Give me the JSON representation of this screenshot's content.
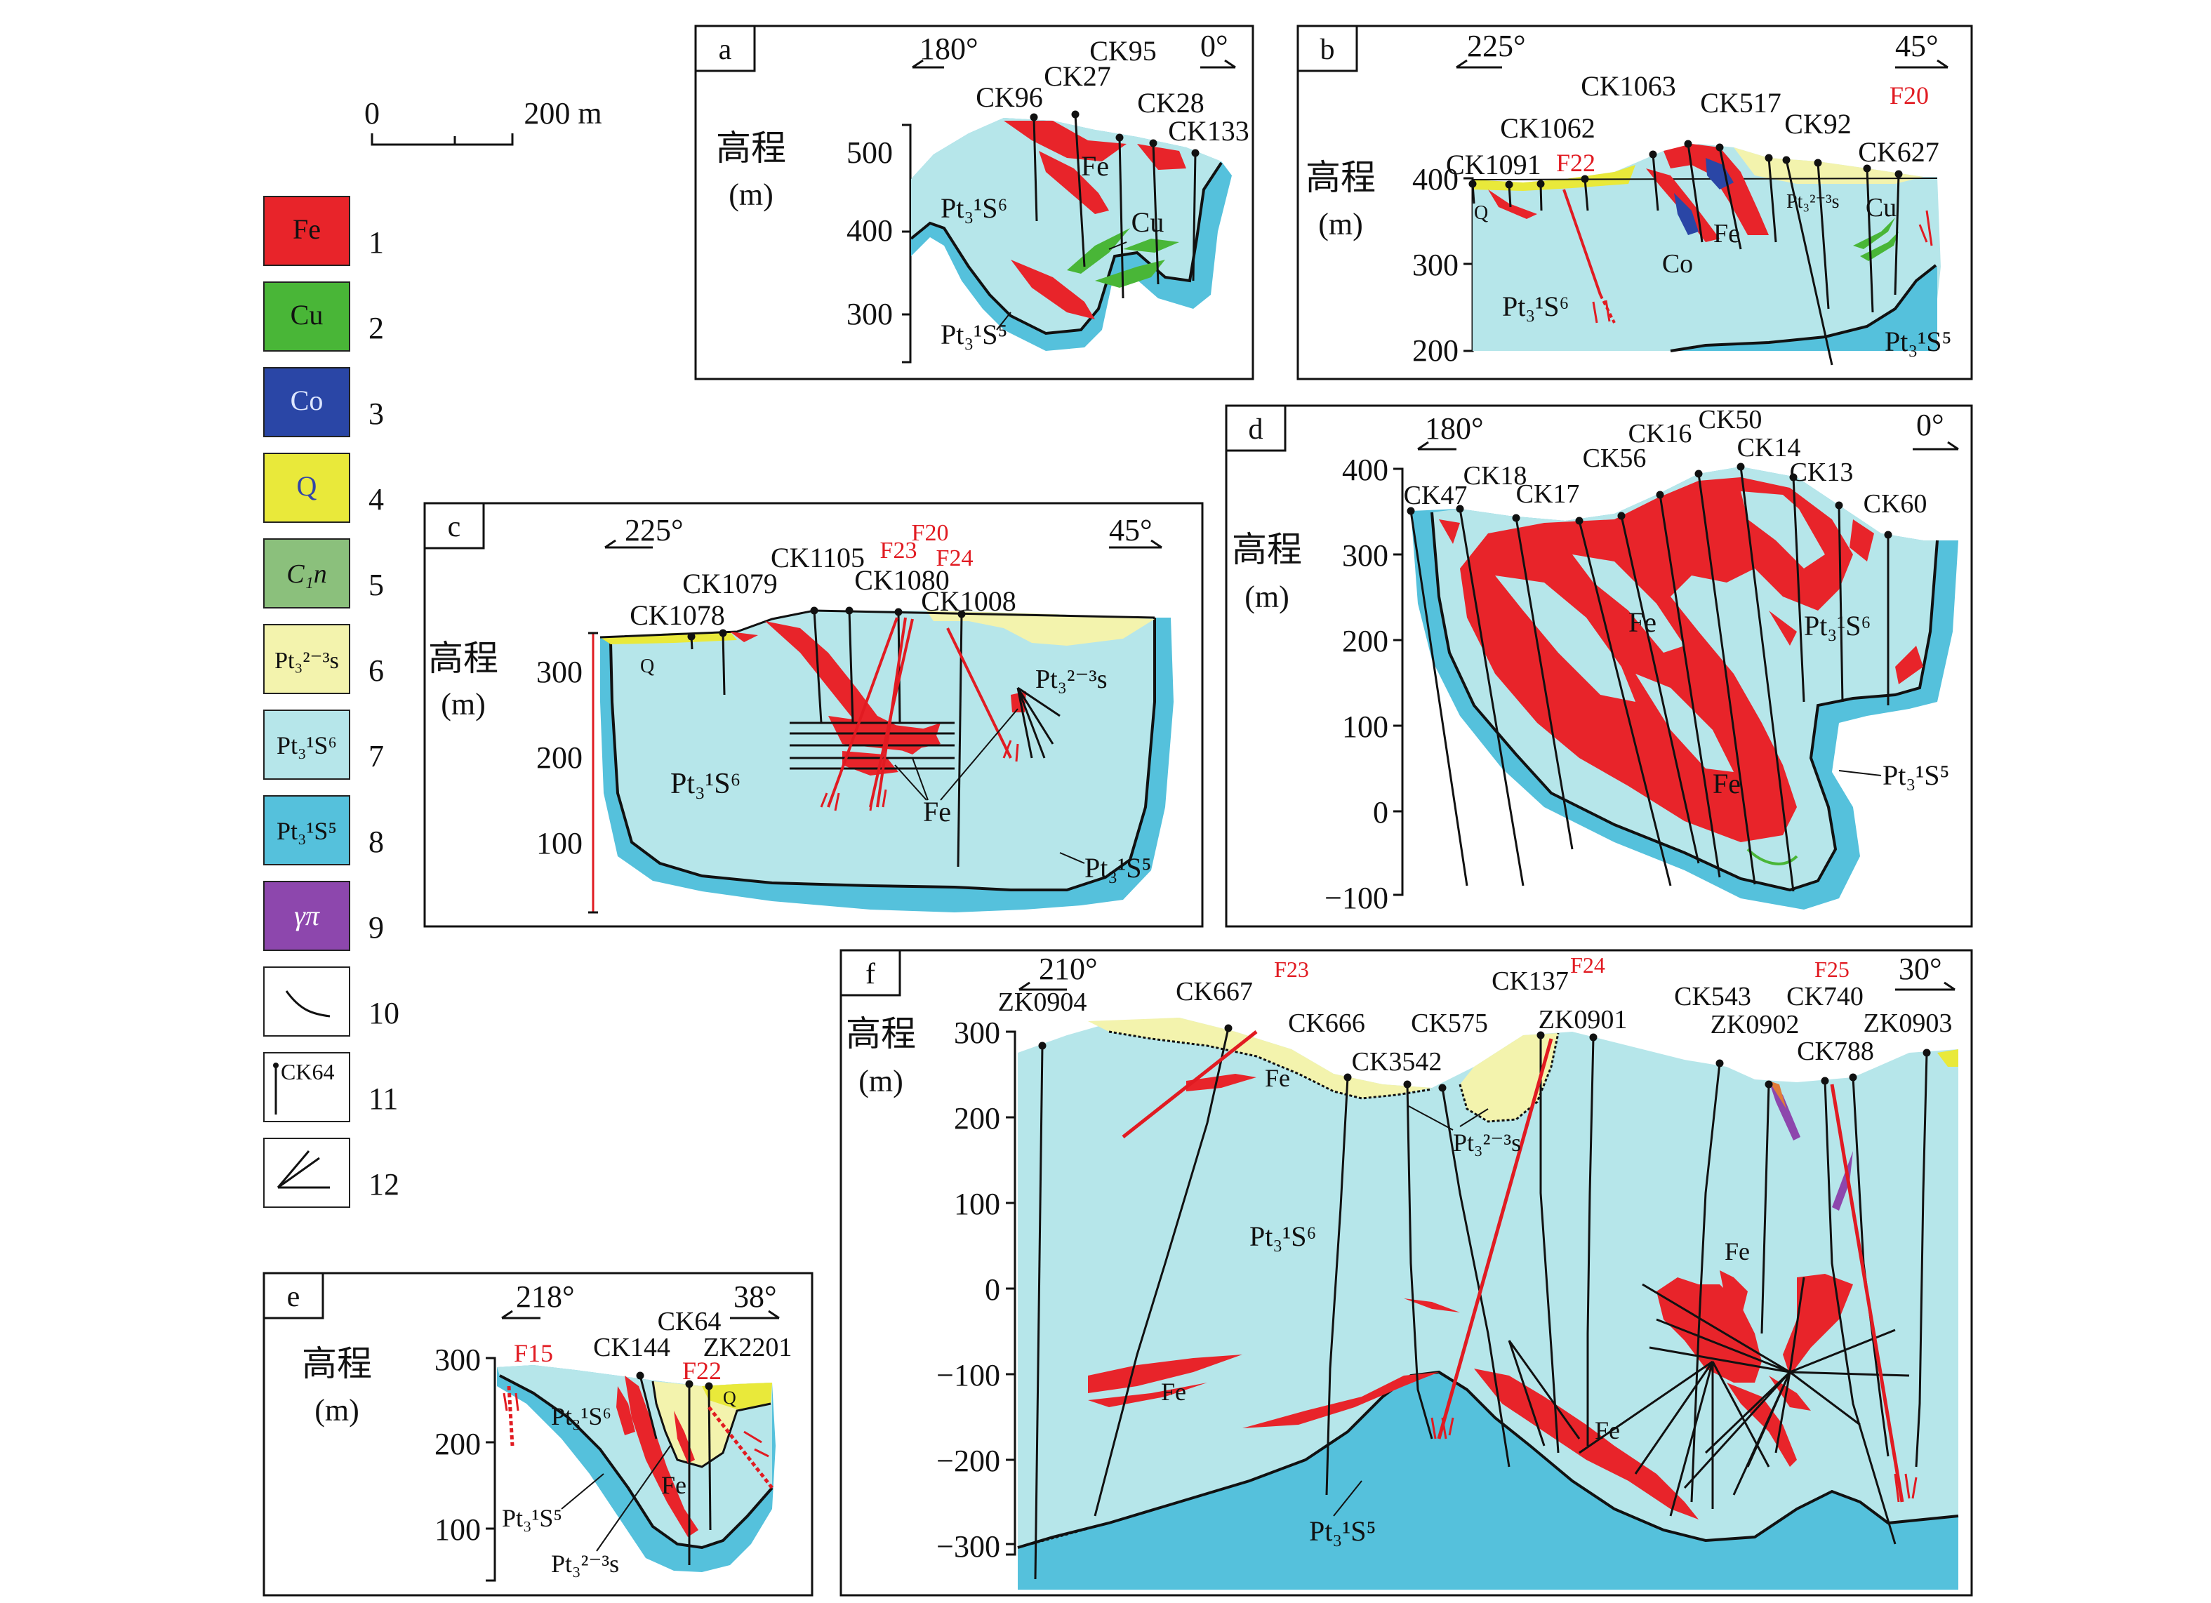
{
  "colors": {
    "fe": "#e8242a",
    "cu": "#49b637",
    "co": "#2a46a6",
    "q": "#f0ef8a",
    "c1n": "#8bc07c",
    "pt_23s": "#f3f3ad",
    "pt_s6": "#b6e6ea",
    "pt_s5": "#55c1dc",
    "gamma_pi": "#8d47ad",
    "fault": "#e11b22",
    "outline": "#111111"
  },
  "scale_bar": {
    "start": "0",
    "end": "200 m"
  },
  "legend": [
    {
      "swatch": "Fe",
      "num": "1",
      "color_key": "fe"
    },
    {
      "swatch": "Cu",
      "num": "2",
      "color_key": "cu"
    },
    {
      "swatch": "Co",
      "num": "3",
      "color_key": "co"
    },
    {
      "swatch": "Q",
      "num": "4",
      "color_key": "q"
    },
    {
      "swatch": "C₁n",
      "num": "5",
      "color_key": "c1n"
    },
    {
      "swatch": "Pt₃²⁻³s",
      "num": "6",
      "color_key": "pt_23s"
    },
    {
      "swatch": "Pt₃¹S⁶",
      "num": "7",
      "color_key": "pt_s6"
    },
    {
      "swatch": "Pt₃¹S⁵",
      "num": "8",
      "color_key": "pt_s5"
    },
    {
      "swatch": "γπ",
      "num": "9",
      "color_key": "gamma_pi"
    },
    {
      "swatch": "",
      "num": "10",
      "icon": "contact-line-icon"
    },
    {
      "swatch": "CK64",
      "num": "11",
      "icon": "drill-hole-icon"
    },
    {
      "swatch": "",
      "num": "12",
      "icon": "fan-drill-icon"
    }
  ],
  "elev_label": "高程",
  "elev_unit": "(m)",
  "panels": {
    "a": {
      "letter": "a",
      "dir_left": "180°",
      "dir_right": "0°",
      "ticks": [
        "500",
        "400",
        "300"
      ],
      "holes": [
        "CK96",
        "CK27",
        "CK95",
        "CK28",
        "CK133"
      ],
      "units": {
        "upper": "Pt₃¹S⁶",
        "lower": "Pt₃¹S⁵"
      },
      "ores": [
        "Fe",
        "Cu"
      ]
    },
    "b": {
      "letter": "b",
      "dir_left": "225°",
      "dir_right": "45°",
      "ticks": [
        "400",
        "300",
        "200"
      ],
      "holes": [
        "CK1091",
        "CK1062",
        "CK1063",
        "CK517",
        "CK92",
        "CK627"
      ],
      "faults": [
        "F20",
        "F22"
      ],
      "units": {
        "upper": "Pt₃¹S⁶",
        "lower": "Pt₃¹S⁵",
        "top": "Pt₃²⁻³s",
        "q": "Q"
      },
      "ores": [
        "Fe",
        "Co",
        "Cu"
      ]
    },
    "c": {
      "letter": "c",
      "dir_left": "225°",
      "dir_right": "45°",
      "ticks": [
        "300",
        "200",
        "100"
      ],
      "holes": [
        "CK1078",
        "CK1079",
        "CK1105",
        "CK1080",
        "CK1008"
      ],
      "faults": [
        "F20",
        "F23",
        "F24"
      ],
      "units": {
        "upper": "Pt₃¹S⁶",
        "lower": "Pt₃¹S⁵",
        "top": "Pt₃²⁻³s",
        "q": "Q"
      },
      "ores": [
        "Fe"
      ]
    },
    "d": {
      "letter": "d",
      "dir_left": "180°",
      "dir_right": "0°",
      "ticks": [
        "400",
        "300",
        "200",
        "100",
        "0",
        "−100"
      ],
      "holes": [
        "CK47",
        "CK18",
        "CK17",
        "CK56",
        "CK16",
        "CK50",
        "CK14",
        "CK13",
        "CK60"
      ],
      "units": {
        "upper": "Pt₃¹S⁶",
        "lower": "Pt₃¹S⁵"
      },
      "ores": [
        "Fe",
        "Fe"
      ]
    },
    "e": {
      "letter": "e",
      "dir_left": "218°",
      "dir_right": "38°",
      "ticks": [
        "300",
        "200",
        "100"
      ],
      "holes": [
        "CK144",
        "CK64",
        "ZK2201"
      ],
      "faults": [
        "F15",
        "F22"
      ],
      "units": {
        "upper": "Pt₃¹S⁶",
        "lower": "Pt₃¹S⁵",
        "top": "Pt₃²⁻³s",
        "q": "Q"
      },
      "ores": [
        "Fe"
      ]
    },
    "f": {
      "letter": "f",
      "dir_left": "210°",
      "dir_right": "30°",
      "ticks": [
        "300",
        "200",
        "100",
        "0",
        "−100",
        "−200",
        "−300"
      ],
      "holes": [
        "ZK0904",
        "CK667",
        "CK666",
        "CK3542",
        "CK575",
        "CK137",
        "ZK0901",
        "CK543",
        "ZK0902",
        "CK740",
        "CK788",
        "ZK0903"
      ],
      "faults": [
        "F23",
        "F24",
        "F25"
      ],
      "units": {
        "upper": "Pt₃¹S⁶",
        "lower": "Pt₃¹S⁵",
        "top": "Pt₃²⁻³s"
      },
      "ores": [
        "Fe",
        "Fe",
        "Fe",
        "Fe"
      ]
    }
  }
}
